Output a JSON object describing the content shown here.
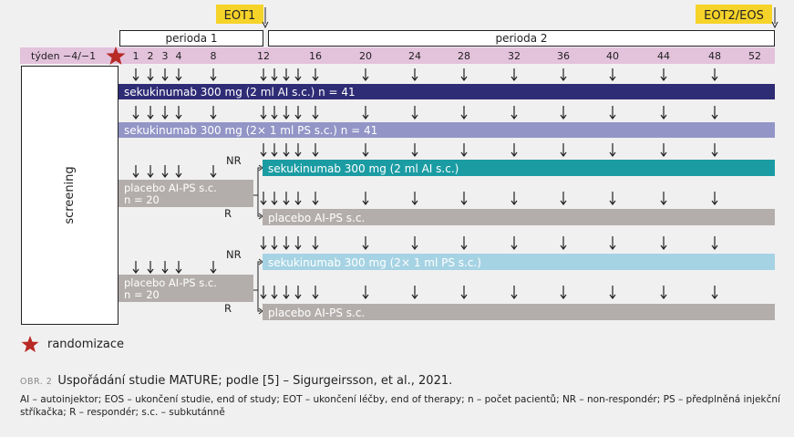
{
  "milestones": {
    "eot1": "EOT1",
    "eot2": "EOT2/EOS"
  },
  "periods": {
    "p1": "perioda 1",
    "p2": "perioda 2"
  },
  "week_label": "týden −4/−1",
  "weeks": [
    "1",
    "2",
    "3",
    "4",
    "8",
    "12",
    "16",
    "20",
    "24",
    "28",
    "32",
    "36",
    "40",
    "44",
    "48",
    "52"
  ],
  "screening": "screening",
  "bars": {
    "b1": "sekukinumab 300 mg (2 ml AI s.c.) n = 41",
    "b2": "sekukinumab 300 mg (2× 1 ml PS s.c.) n = 41",
    "b3": "sekukinumab 300 mg (2 ml AI s.c.)",
    "b4": "placebo AI-PS s.c.",
    "b5": "sekukinumab 300 mg (2× 1 ml PS s.c.)",
    "b6": "placebo AI-PS s.c."
  },
  "placebo": {
    "line1": "placebo AI-PS s.c.",
    "line2": "n = 20"
  },
  "nr": "NR",
  "r": "R",
  "legend": "randomizace",
  "colors": {
    "navy": "#2f2c76",
    "lavender": "#9295c6",
    "teal": "#1b9ca3",
    "lightblue": "#a6d3e3",
    "gray": "#b3aeab",
    "pink": "#e3c2dc",
    "yellow": "#f6d329",
    "star": "#b72a25"
  },
  "caption": {
    "label": "OBR. 2",
    "text": "Uspořádání studie MATURE; podle [5] – Sigurgeirsson, et al., 2021."
  },
  "footnote": "AI – autoinjektor; EOS – ukončení studie, end of study; EOT – ukončení léčby, end of therapy; n – počet pacientů; NR – non-respondér; PS – předplněná injekční stříkačka; R – respondér; s.c. – subkutánně"
}
